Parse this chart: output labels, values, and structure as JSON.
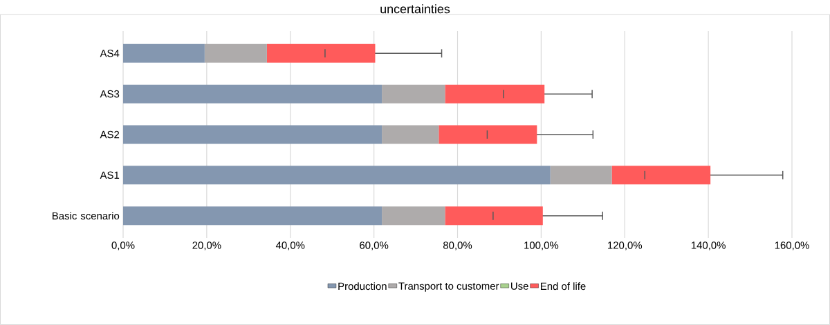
{
  "chart_data": {
    "type": "bar",
    "title": "uncertainties",
    "orientation": "horizontal",
    "stacked": true,
    "categories": [
      "AS4",
      "AS3",
      "AS2",
      "AS1",
      "Basic scenario"
    ],
    "series": [
      {
        "name": "Production",
        "color": "#8497b0",
        "values": [
          19.5,
          61.9,
          61.9,
          102.2,
          61.9
        ]
      },
      {
        "name": "Transport to customer",
        "color": "#aeabab",
        "values": [
          14.9,
          15.1,
          13.6,
          14.7,
          15.1
        ]
      },
      {
        "name": "Use",
        "color": "#a9d18e",
        "values": [
          0,
          0,
          0,
          0,
          0
        ]
      },
      {
        "name": "End of life",
        "color": "#ff5b5b",
        "values": [
          25.9,
          23.8,
          23.5,
          23.6,
          23.4
        ],
        "errors": [
          [
            48.3,
            76.2
          ],
          [
            91.0,
            112.2
          ],
          [
            87.1,
            112.4
          ],
          [
            124.8,
            157.8
          ],
          [
            88.5,
            114.7
          ]
        ]
      }
    ],
    "xlim": [
      0,
      160
    ],
    "xticks": [
      {
        "value": 0,
        "label": "0,0%"
      },
      {
        "value": 20,
        "label": "20,0%"
      },
      {
        "value": 40,
        "label": "40,0%"
      },
      {
        "value": 60,
        "label": "60,0%"
      },
      {
        "value": 80,
        "label": "80,0%"
      },
      {
        "value": 100,
        "label": "100,0%"
      },
      {
        "value": 120,
        "label": "120,0%"
      },
      {
        "value": 140,
        "label": "140,0%"
      },
      {
        "value": 160,
        "label": "160,0%"
      }
    ],
    "grid": "x",
    "legend": "bottom"
  }
}
